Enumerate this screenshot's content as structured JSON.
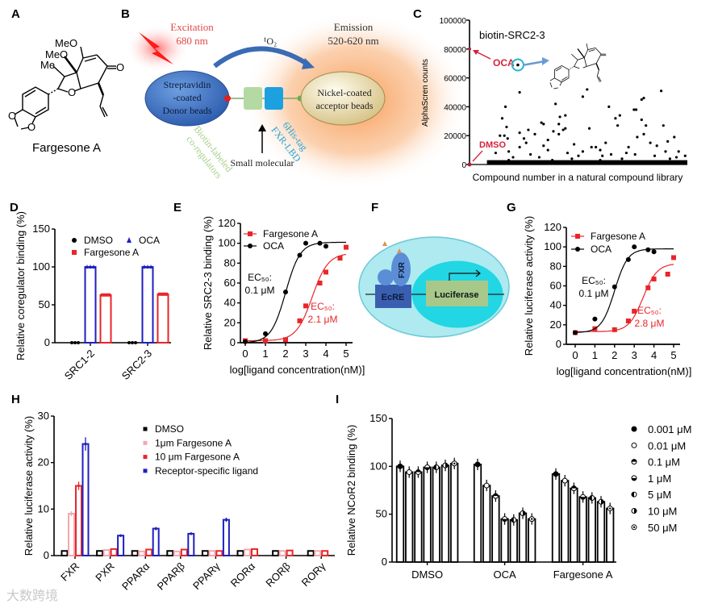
{
  "panel_labels": [
    "A",
    "B",
    "C",
    "D",
    "E",
    "F",
    "G",
    "H",
    "I"
  ],
  "panel_a": {
    "atoms": [
      "MeO",
      "MeO",
      "Me",
      "O",
      "O",
      "O",
      "O"
    ],
    "compound_name": "Fargesone A"
  },
  "panel_b": {
    "excitation": [
      "Excitation",
      "680 nm"
    ],
    "singlet_oxygen": "¹O₂",
    "emission": [
      "Emission",
      "520-620 nm"
    ],
    "donor_bead": [
      "Streptavidin",
      "-coated",
      "Donor beads"
    ],
    "acceptor_bead": [
      "Nickel-coated",
      "acceptor beads"
    ],
    "coregulator_label": [
      "Biotin-labeled",
      "co-regulators"
    ],
    "receptor_label": [
      "6His-tag",
      "FXR-LBD"
    ],
    "small_molecule_label": "Small molecular",
    "colors": {
      "donor": "#3f73c4",
      "acceptor": "#f3e6b8",
      "excitation": "#e8262a",
      "emission_glow": "#f7a15c",
      "coregulator": "#b5d9a3",
      "receptor": "#1ca0e0"
    }
  },
  "panel_f": {
    "labels": {
      "receptor": "FXR",
      "response_element": "EcRE",
      "reporter": "Luciferase"
    }
  },
  "watermark": "大数跨境",
  "chart_data": [
    {
      "id": "C",
      "type": "scatter",
      "title": "biotin-SRC2-3",
      "xlabel": "Compound number in a natural compound library",
      "ylabel": "AlphaScren counts",
      "ylim": [
        0,
        100000
      ],
      "yticks": [
        0,
        20000,
        40000,
        60000,
        80000,
        100000
      ],
      "xlim": [
        0,
        1000
      ],
      "annotations": [
        {
          "label": "OCA",
          "x": 0,
          "y": 80000,
          "color": "#d6223a"
        },
        {
          "label": "DMSO",
          "x": 0,
          "y": 0,
          "color": "#d6223a"
        }
      ],
      "highlight": {
        "name": "Fargesone A",
        "x": 222,
        "y": 69000
      },
      "baseline_band": {
        "x_from": 80,
        "x_to": 1000,
        "y_max": 3000
      },
      "points": [
        [
          140,
          20000
        ],
        [
          150,
          32000
        ],
        [
          165,
          40000
        ],
        [
          170,
          26000
        ],
        [
          160,
          20000
        ],
        [
          175,
          18000
        ],
        [
          180,
          9000
        ],
        [
          230,
          50000
        ],
        [
          230,
          22000
        ],
        [
          250,
          18000
        ],
        [
          270,
          24000
        ],
        [
          260,
          15000
        ],
        [
          300,
          21000
        ],
        [
          330,
          29000
        ],
        [
          340,
          28000
        ],
        [
          360,
          17000
        ],
        [
          385,
          23000
        ],
        [
          395,
          42000
        ],
        [
          410,
          28000
        ],
        [
          415,
          33000
        ],
        [
          410,
          21000
        ],
        [
          430,
          24000
        ],
        [
          440,
          34000
        ],
        [
          440,
          25000
        ],
        [
          360,
          10000
        ],
        [
          480,
          14000
        ],
        [
          520,
          47000
        ],
        [
          540,
          52000
        ],
        [
          550,
          25000
        ],
        [
          560,
          12000
        ],
        [
          580,
          12000
        ],
        [
          600,
          10000
        ],
        [
          625,
          15000
        ],
        [
          640,
          40000
        ],
        [
          670,
          32000
        ],
        [
          680,
          27000
        ],
        [
          690,
          34000
        ],
        [
          720,
          8000
        ],
        [
          755,
          38000
        ],
        [
          765,
          38000
        ],
        [
          790,
          45000
        ],
        [
          790,
          31000
        ],
        [
          800,
          46000
        ],
        [
          810,
          27000
        ],
        [
          770,
          19000
        ],
        [
          800,
          21000
        ],
        [
          830,
          15000
        ],
        [
          880,
          51000
        ],
        [
          890,
          27000
        ],
        [
          910,
          16000
        ],
        [
          940,
          19000
        ],
        [
          900,
          9000
        ],
        [
          200,
          5000
        ],
        [
          280,
          7000
        ],
        [
          320,
          5000
        ],
        [
          450,
          8000
        ],
        [
          500,
          6000
        ],
        [
          650,
          7000
        ],
        [
          700,
          4000
        ],
        [
          850,
          6000
        ],
        [
          950,
          5000
        ],
        [
          120,
          8000
        ],
        [
          180,
          3000
        ],
        [
          380,
          3000
        ],
        [
          600,
          3000
        ],
        [
          960,
          9000
        ],
        [
          230,
          12000
        ],
        [
          340,
          13000
        ],
        [
          470,
          4000
        ],
        [
          520,
          9000
        ],
        [
          610,
          6000
        ],
        [
          730,
          12000
        ],
        [
          760,
          7000
        ],
        [
          860,
          13000
        ],
        [
          920,
          4000
        ],
        [
          990,
          6000
        ]
      ]
    },
    {
      "id": "D",
      "type": "bar",
      "ylabel": "Relative coregulator binding (%)",
      "ylim": [
        0,
        150
      ],
      "yticks": [
        0,
        50,
        100,
        150
      ],
      "categories": [
        "SRC1-2",
        "SRC2-3"
      ],
      "series": [
        {
          "name": "DMSO",
          "values": [
            0,
            0
          ],
          "color": "#000000",
          "marker": "circle"
        },
        {
          "name": "OCA",
          "values": [
            100,
            100
          ],
          "color": "#1f1fbf",
          "marker": "triangle"
        },
        {
          "name": "Fargesone A",
          "values": [
            63,
            64
          ],
          "color": "#e8262a",
          "marker": "square"
        }
      ]
    },
    {
      "id": "E",
      "type": "line",
      "xlabel": "log[ligand concentration(nM)]",
      "ylabel": "Relative SRC2-3 binding (%)",
      "xlim": [
        0,
        5
      ],
      "xticks": [
        0,
        1,
        2,
        3,
        4,
        5
      ],
      "ylim": [
        0,
        120
      ],
      "yticks": [
        0,
        20,
        40,
        60,
        80,
        100,
        120
      ],
      "series": [
        {
          "name": "Fargesone A",
          "color": "#e8262a",
          "marker": "square",
          "x": [
            0,
            1,
            2,
            2.7,
            3,
            3.7,
            4,
            4.7,
            5
          ],
          "y": [
            2,
            2,
            3,
            22,
            37,
            60,
            71,
            85,
            96
          ],
          "fit": {
            "bottom": 2,
            "top": 90,
            "logEC50": 3.32,
            "hill": 1.1
          },
          "ec50_label": [
            "EC₅₀:",
            "2.1 μM"
          ]
        },
        {
          "name": "OCA",
          "color": "#000000",
          "marker": "circle",
          "x": [
            0,
            1,
            2,
            2.7,
            3,
            3.7,
            4
          ],
          "y": [
            1,
            9,
            51,
            88,
            100,
            100,
            97
          ],
          "fit": {
            "bottom": 0,
            "top": 101,
            "logEC50": 2.0,
            "hill": 1.2
          },
          "ec50_label": [
            "EC₅₀:",
            "0.1 μM"
          ]
        }
      ]
    },
    {
      "id": "G",
      "type": "line",
      "xlabel": "log[ligand concentration(nM)]",
      "ylabel": "Relative luciferase activity (%)",
      "xlim": [
        0,
        5
      ],
      "xticks": [
        0,
        1,
        2,
        3,
        4,
        5
      ],
      "ylim": [
        0,
        120
      ],
      "yticks": [
        0,
        20,
        40,
        60,
        80,
        100,
        120
      ],
      "series": [
        {
          "name": "Fargesone A",
          "color": "#e8262a",
          "marker": "square",
          "x": [
            0,
            1,
            2,
            2.7,
            3,
            3.7,
            4,
            4.7,
            5
          ],
          "y": [
            12,
            16,
            15,
            24,
            34,
            58,
            67,
            72,
            89
          ],
          "fit": {
            "bottom": 13,
            "top": 83,
            "logEC50": 3.45,
            "hill": 1.2
          },
          "ec50_label": [
            "EC₅₀:",
            "2.8 μM"
          ]
        },
        {
          "name": "OCA",
          "color": "#000000",
          "marker": "circle",
          "x": [
            0,
            1,
            2,
            2.7,
            3,
            3.7,
            4
          ],
          "y": [
            12,
            26,
            59,
            87,
            100,
            97,
            95
          ],
          "fit": {
            "bottom": 12,
            "top": 98,
            "logEC50": 2.0,
            "hill": 1.3
          },
          "ec50_label": [
            "EC₅₀:",
            "0.1 μM"
          ]
        }
      ]
    },
    {
      "id": "H",
      "type": "bar",
      "ylabel": "Relative luciferase activity (%)",
      "ylim": [
        0,
        30
      ],
      "yticks": [
        0,
        10,
        20,
        30
      ],
      "categories": [
        "FXR",
        "PXR",
        "PPARα",
        "PPARβ",
        "PPARγ",
        "RORα",
        "RORβ",
        "RORγ"
      ],
      "series": [
        {
          "name": "DMSO",
          "values": [
            1,
            1,
            1,
            1,
            1,
            1,
            1,
            1
          ],
          "color": "#000000"
        },
        {
          "name": "1μm Fargesone A",
          "values": [
            9,
            1.2,
            0.9,
            0.9,
            1,
            1.3,
            1,
            1
          ],
          "color": "#f2a7b0"
        },
        {
          "name": "10 μm Fargesone A",
          "values": [
            15,
            1.4,
            1.3,
            1.3,
            1,
            1.4,
            1.1,
            1
          ],
          "color": "#e8262a"
        },
        {
          "name": "Receptor-specific ligand",
          "values": [
            24,
            4.3,
            5.8,
            4.7,
            7.7,
            null,
            null,
            null
          ],
          "color": "#1f1fbf"
        }
      ]
    },
    {
      "id": "I",
      "type": "bar",
      "ylabel": "Relative NCoR2 binding (%)",
      "ylim": [
        0,
        150
      ],
      "yticks": [
        0,
        50,
        100,
        150
      ],
      "categories": [
        "DMSO",
        "OCA",
        "Fargesone A"
      ],
      "series": [
        {
          "name": "0.001 μM",
          "values": [
            100,
            102,
            92
          ],
          "marker": "filled"
        },
        {
          "name": "0.01 μM",
          "values": [
            94,
            80,
            85
          ],
          "marker": "open"
        },
        {
          "name": "0.1 μM",
          "values": [
            94,
            69,
            77
          ],
          "marker": "half-top"
        },
        {
          "name": "1 μM",
          "values": [
            99,
            45,
            68
          ],
          "marker": "half-bottom"
        },
        {
          "name": "5 μM",
          "values": [
            99,
            44,
            67
          ],
          "marker": "half-left"
        },
        {
          "name": "10 μM",
          "values": [
            101,
            51,
            63
          ],
          "marker": "half-right"
        },
        {
          "name": "50 μM",
          "values": [
            103,
            45,
            56
          ],
          "marker": "dot-center"
        }
      ]
    }
  ]
}
